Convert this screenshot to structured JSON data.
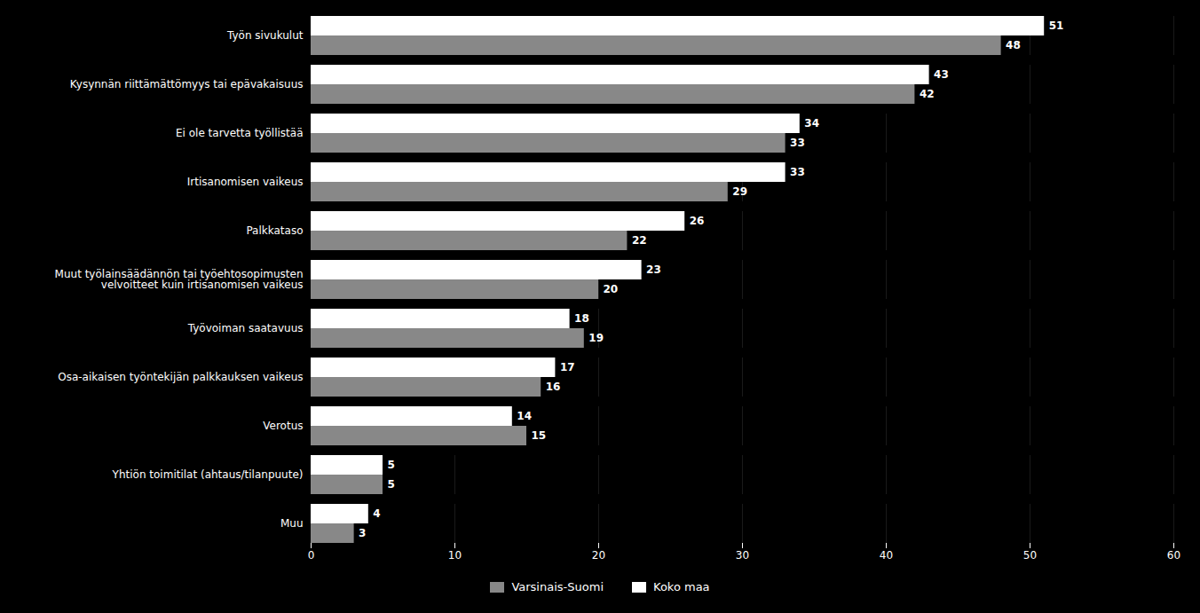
{
  "chart_data": {
    "type": "bar",
    "orientation": "horizontal",
    "categories": [
      "Työn sivukulut",
      "Kysynnän riittämättömyys tai epävakaisuus",
      "Ei ole tarvetta työllistää",
      "Irtisanomisen vaikeus",
      "Palkkataso",
      "Muut työlainsäädännön tai työehtosopimusten\nvelvoitteet kuin irtisanomisen vaikeus",
      "Työvoiman saatavuus",
      "Osa-aikaisen työntekijän palkkauksen vaikeus",
      "Verotus",
      "Yhtiön toimitilat (ahtaus/tilanpuute)",
      "Muu"
    ],
    "series": [
      {
        "name": "Varsinais-Suomi",
        "color": "#888888",
        "values": [
          48,
          42,
          33,
          29,
          22,
          20,
          19,
          16,
          15,
          5,
          3
        ]
      },
      {
        "name": "Koko maa",
        "color": "#ffffff",
        "values": [
          51,
          43,
          34,
          33,
          26,
          23,
          18,
          17,
          14,
          5,
          4
        ]
      }
    ],
    "xlim": [
      0,
      60
    ],
    "xticks": [
      0,
      10,
      20,
      30,
      40,
      50,
      60
    ],
    "grid": true,
    "data_labels": true,
    "legend": "bottom"
  }
}
